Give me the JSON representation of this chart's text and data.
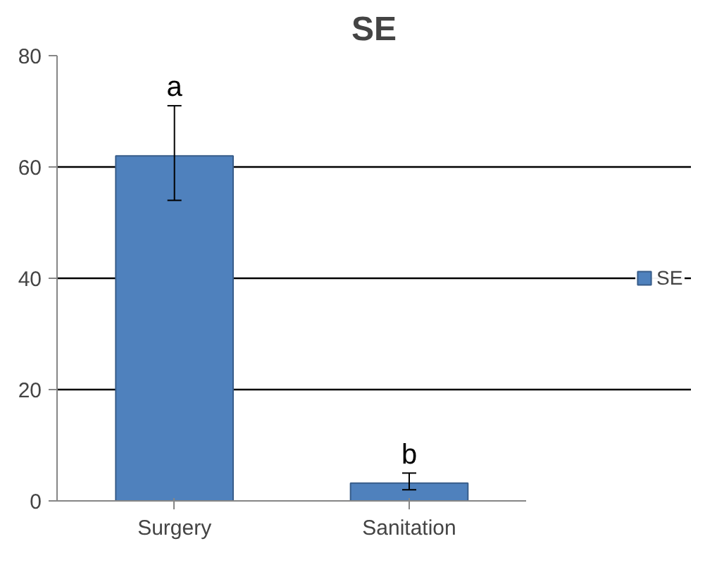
{
  "chart_data": {
    "type": "bar",
    "title": "SE",
    "categories": [
      "Surgery",
      "Sanitation"
    ],
    "series": [
      {
        "name": "SE",
        "color": "#4f81bd",
        "values": [
          62,
          3.2
        ],
        "errors": [
          [
            54,
            71
          ],
          [
            2,
            5
          ]
        ]
      }
    ],
    "ylim": [
      0,
      80
    ],
    "yticks": [
      0,
      20,
      40,
      60,
      80
    ],
    "grid": "y",
    "legend": "right",
    "annotations": [
      "a",
      "b"
    ]
  }
}
